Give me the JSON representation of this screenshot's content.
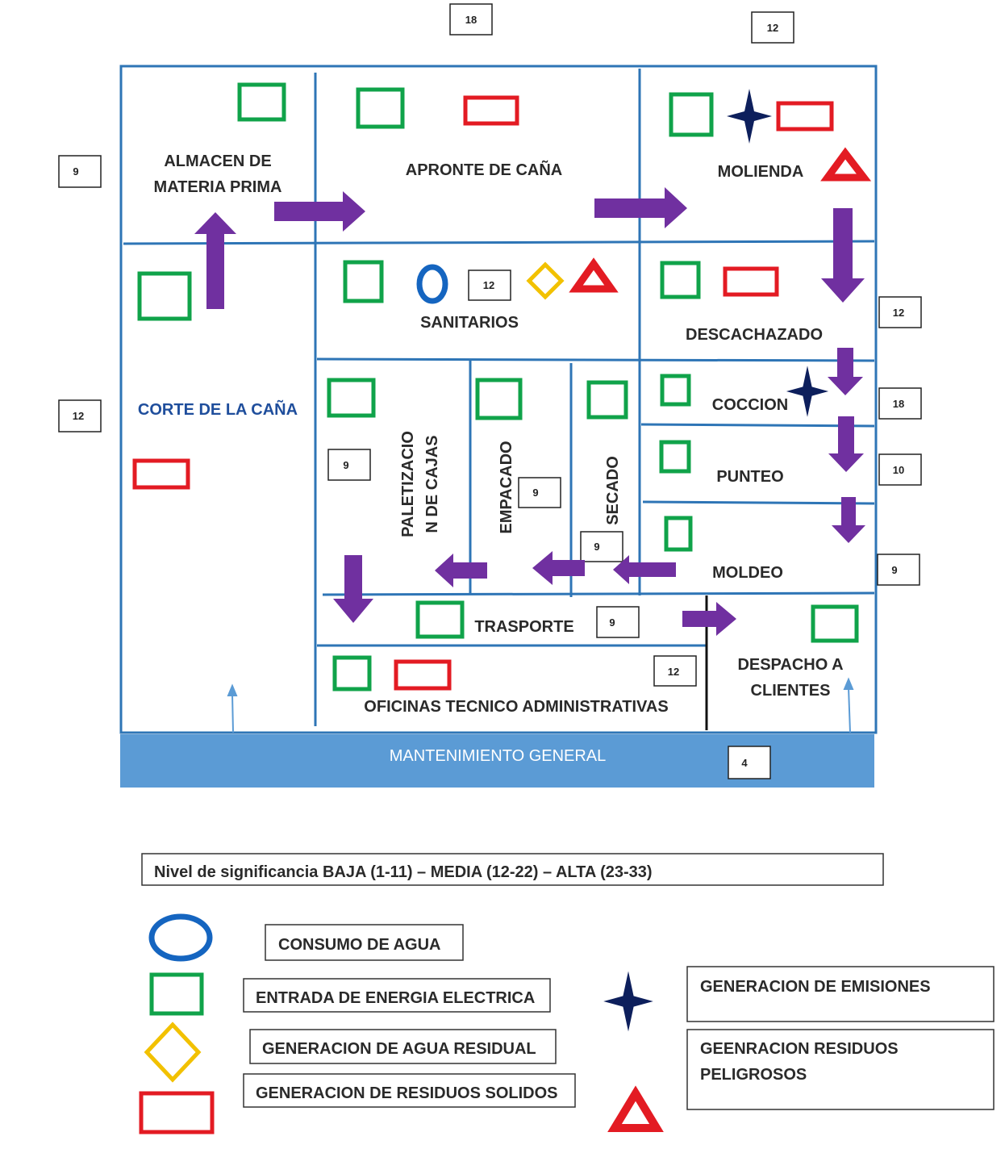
{
  "colors": {
    "wall": "#2e75b6",
    "maintenance_band": "#5b9bd5",
    "arrow": "#7030a0",
    "energy": "#10a34a",
    "solid_waste": "#e31b23",
    "water": "#1565c0",
    "wastewater": "#f2c100",
    "hazardous": "#e31b23",
    "emissions": "#0d1f5c"
  },
  "areas": {
    "almacen": [
      "ALMACEN DE",
      "MATERIA PRIMA"
    ],
    "apronte": "APRONTE DE CAÑA",
    "molienda": "MOLIENDA",
    "sanitarios": "SANITARIOS",
    "descachazado": "DESCACHAZADO",
    "corte": "CORTE DE LA CAÑA",
    "paletizacion": [
      "PALETIZACIO",
      "N DE CAJAS"
    ],
    "empacado": "EMPACADO",
    "secado": "SECADO",
    "coccion": "COCCION",
    "punteo": "PUNTEO",
    "moldeo": "MOLDEO",
    "trasporte": "TRASPORTE",
    "oficinas": "OFICINAS TECNICO ADMINISTRATIVAS",
    "despacho": [
      "DESPACHO A",
      "CLIENTES"
    ],
    "mantenimiento": "MANTENIMIENTO GENERAL"
  },
  "scores": {
    "apronte": "18",
    "molienda": "12",
    "almacen": "9",
    "sanitarios": "12",
    "descachazado": "12",
    "corte": "12",
    "coccion": "18",
    "punteo": "10",
    "moldeo": "9",
    "paletizacion": "9",
    "empacado": "9",
    "secado": "9",
    "trasporte": "9",
    "oficinas": "12",
    "mantenimiento": "4"
  },
  "legend": {
    "significance": "Nivel de significancia  BAJA (1-11) – MEDIA (12-22) – ALTA (23-33)",
    "water": "CONSUMO DE AGUA",
    "energy": "ENTRADA DE ENERGIA ELECTRICA",
    "wastewater": "GENERACION DE AGUA RESIDUAL",
    "solid_waste": "GENERACION DE RESIDUOS SOLIDOS",
    "emissions": "GENERACION DE EMISIONES",
    "hazardous": [
      "GEENRACION RESIDUOS",
      "PELIGROSOS"
    ]
  }
}
